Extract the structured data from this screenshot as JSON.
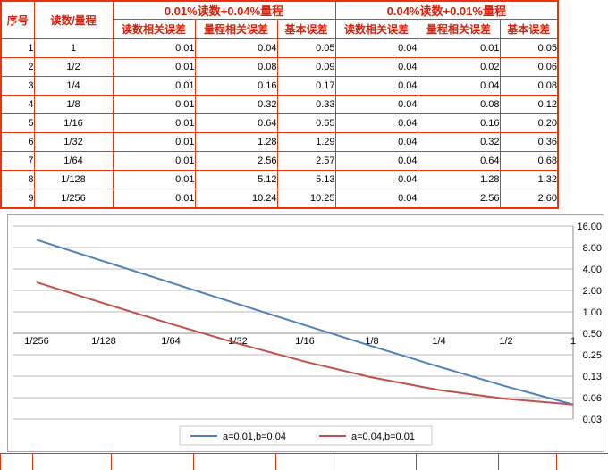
{
  "colors": {
    "table_border": "#f0300f",
    "header_text": "#d8200a",
    "chart_border": "#a6a6a6",
    "gridline": "#bcbcbc",
    "axis_line": "#8c8c8c",
    "legend_border": "#c8c8c8"
  },
  "table": {
    "header": {
      "index": "序号",
      "ratio": "读数/量程",
      "group1": "0.01%读数+0.04%量程",
      "group2": "0.04%读数+0.01%量程",
      "sub": [
        "读数相关误差",
        "量程相关误差",
        "基本误差",
        "读数相关误差",
        "量程相关误差",
        "基本误差"
      ]
    },
    "rows": [
      [
        "1",
        "1",
        "0.01",
        "0.04",
        "0.05",
        "0.04",
        "0.01",
        "0.05"
      ],
      [
        "2",
        "1/2",
        "0.01",
        "0.08",
        "0.09",
        "0.04",
        "0.02",
        "0.06"
      ],
      [
        "3",
        "1/4",
        "0.01",
        "0.16",
        "0.17",
        "0.04",
        "0.04",
        "0.08"
      ],
      [
        "4",
        "1/8",
        "0.01",
        "0.32",
        "0.33",
        "0.04",
        "0.08",
        "0.12"
      ],
      [
        "5",
        "1/16",
        "0.01",
        "0.64",
        "0.65",
        "0.04",
        "0.16",
        "0.20"
      ],
      [
        "6",
        "1/32",
        "0.01",
        "1.28",
        "1.29",
        "0.04",
        "0.32",
        "0.36"
      ],
      [
        "7",
        "1/64",
        "0.01",
        "2.56",
        "2.57",
        "0.04",
        "0.64",
        "0.68"
      ],
      [
        "8",
        "1/128",
        "0.01",
        "5.12",
        "5.13",
        "0.04",
        "1.28",
        "1.32"
      ],
      [
        "9",
        "1/256",
        "0.01",
        "10.24",
        "10.25",
        "0.04",
        "2.56",
        "2.60"
      ]
    ]
  },
  "chart_data": {
    "type": "line",
    "x_categories": [
      "1/256",
      "1/128",
      "1/64",
      "1/32",
      "1/16",
      "1/8",
      "1/4",
      "1/2",
      "1"
    ],
    "series": [
      {
        "name": "a=0.01,b=0.04",
        "color": "#4F81BD",
        "values": [
          10.25,
          5.13,
          2.57,
          1.29,
          0.65,
          0.33,
          0.17,
          0.09,
          0.05
        ]
      },
      {
        "name": "a=0.04,b=0.01",
        "color": "#C0504D",
        "values": [
          2.6,
          1.32,
          0.68,
          0.36,
          0.2,
          0.12,
          0.08,
          0.06,
          0.05
        ]
      }
    ],
    "y_axis": {
      "scale": "log2",
      "position": "right",
      "tick_values": [
        16,
        8,
        4,
        2,
        1,
        0.5,
        0.25,
        0.125,
        0.0625,
        0.03125
      ],
      "tick_labels": [
        "16.00",
        "8.00",
        "4.00",
        "2.00",
        "1.00",
        "0.50",
        "0.25",
        "0.13",
        "0.06",
        "0.03"
      ]
    },
    "x_axis_cross_tick_index": 5,
    "legend_position": "bottom",
    "gridlines": true
  }
}
